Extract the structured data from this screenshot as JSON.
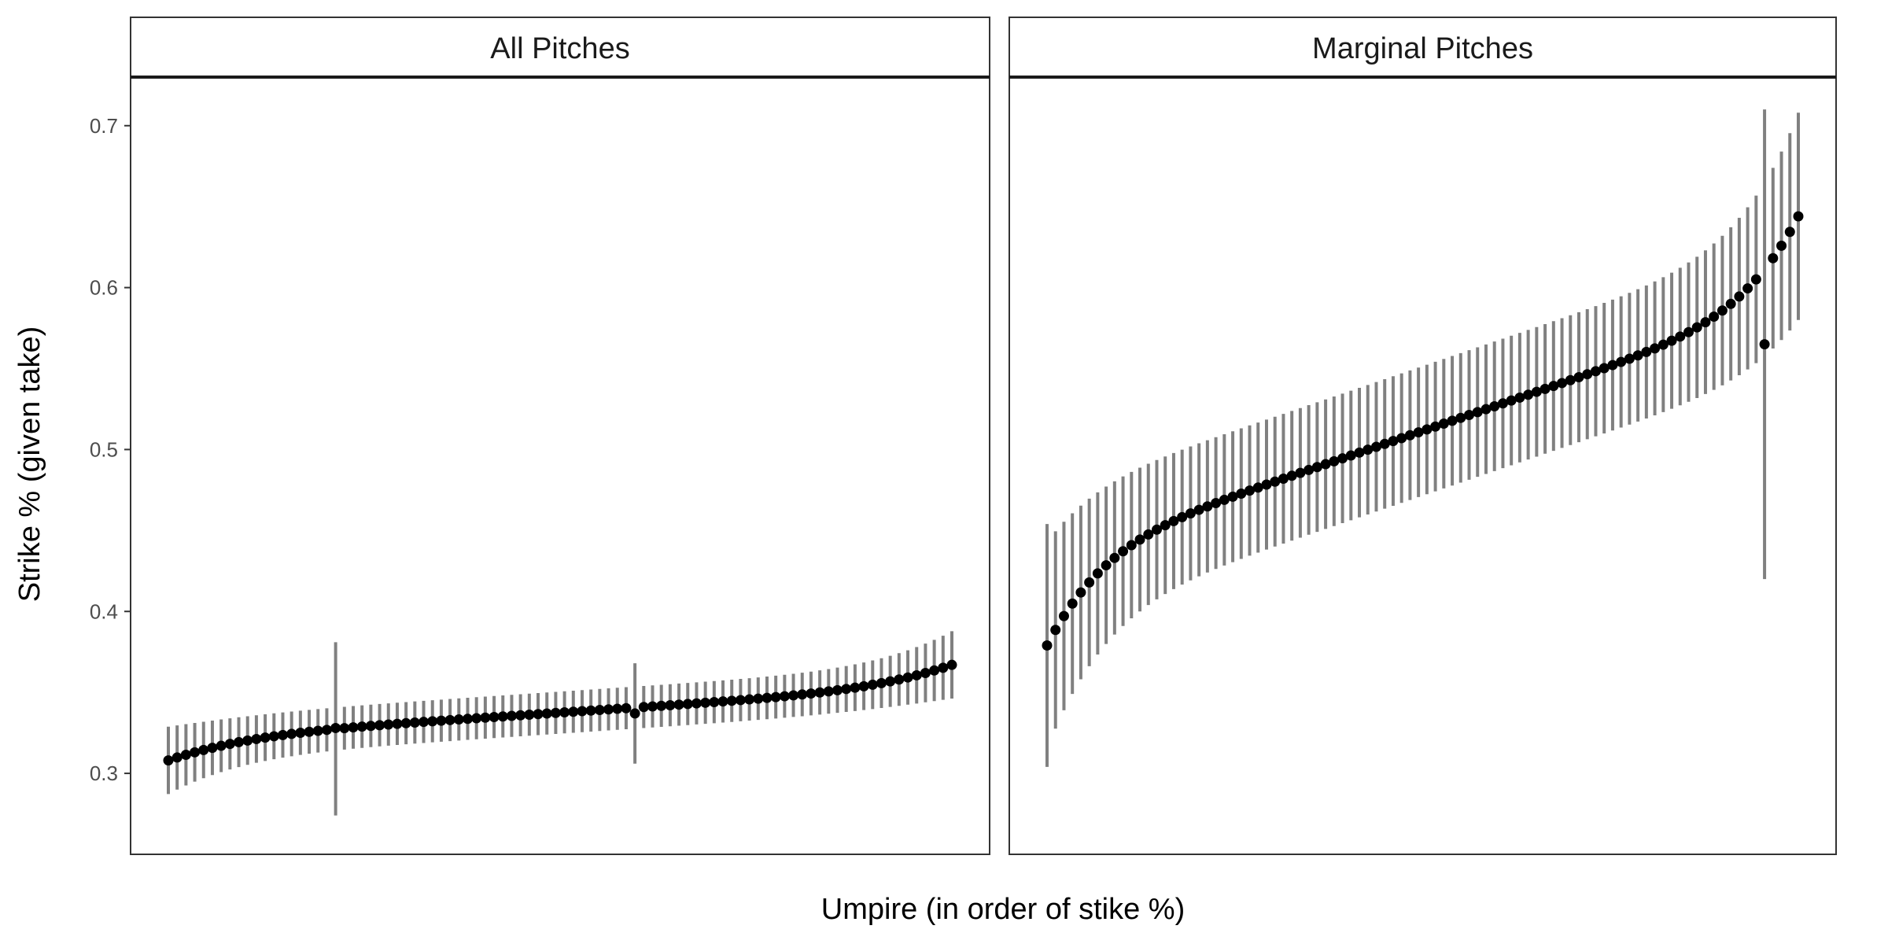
{
  "chart_data": [
    {
      "type": "scatter",
      "panel": "All Pitches",
      "xlabel": "Umpire (in order of stike %)",
      "ylabel": "Strike % (given take)",
      "ylim": [
        0.25,
        0.73
      ],
      "yticks": [
        "0.3",
        "0.4",
        "0.5",
        "0.6",
        "0.7"
      ],
      "n_umpires": 90,
      "estimate_range": [
        0.308,
        0.367
      ],
      "typical_interval_halfwidth": 0.013,
      "outlier_intervals": [
        {
          "rank": 20,
          "estimate": 0.328,
          "low": 0.274,
          "high": 0.381
        },
        {
          "rank": 54,
          "estimate": 0.337,
          "low": 0.306,
          "high": 0.368
        }
      ]
    },
    {
      "type": "scatter",
      "panel": "Marginal Pitches",
      "xlabel": "Umpire (in order of stike %)",
      "ylabel": "Strike % (given take)",
      "ylim": [
        0.25,
        0.73
      ],
      "yticks": [
        "0.3",
        "0.4",
        "0.5",
        "0.6",
        "0.7"
      ],
      "n_umpires": 90,
      "estimate_range": [
        0.379,
        0.644
      ],
      "typical_interval_halfwidth": 0.04,
      "outlier_intervals": [
        {
          "rank": 1,
          "estimate": 0.379,
          "low": 0.304,
          "high": 0.454
        },
        {
          "rank": 86,
          "estimate": 0.565,
          "low": 0.42,
          "high": 0.71
        }
      ]
    }
  ]
}
